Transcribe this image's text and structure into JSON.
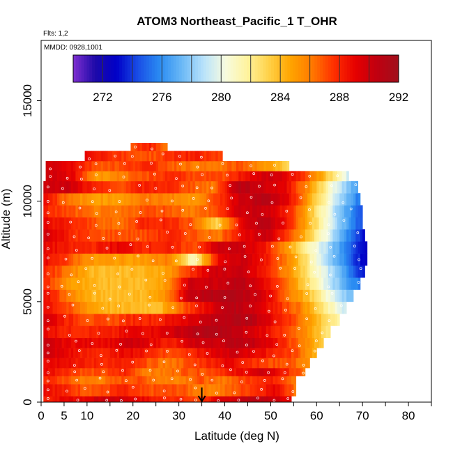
{
  "title": "ATOM3 Northeast_Pacific_1 T_OHR",
  "flights_label": "Flts: 1,2",
  "mmdd_label": "MMDD: 0928,1001",
  "chart_data": {
    "type": "heatmap",
    "title": "ATOM3 Northeast_Pacific_1 T_OHR",
    "xlabel": "Latitude (deg N)",
    "ylabel": "Altitude (m)",
    "xlim": [
      0,
      85
    ],
    "ylim": [
      0,
      18000
    ],
    "x_ticks": [
      0,
      5,
      10,
      20,
      30,
      40,
      50,
      60,
      70,
      80
    ],
    "y_ticks": [
      0,
      5000,
      10000,
      15000
    ],
    "colorbar": {
      "ticks": [
        272,
        276,
        280,
        284,
        288,
        292
      ],
      "range": [
        270,
        292
      ],
      "colors": [
        "#7f2fd0",
        "#1e0aa8",
        "#0000c8",
        "#1a4fe6",
        "#2a8cf2",
        "#6ab8f6",
        "#b8e2fb",
        "#f6fbe0",
        "#fff4a0",
        "#ffd24a",
        "#ffa500",
        "#ff7a00",
        "#ff3000",
        "#e60000",
        "#c00010",
        "#a0101c"
      ]
    },
    "marker_latitude": 35,
    "data_rows": [
      {
        "y0": 0,
        "y1": 300,
        "x0": 0.5,
        "x1": 54.5,
        "v": [
          288,
          289,
          289,
          290,
          290,
          289,
          288,
          288,
          287,
          289,
          290,
          291,
          290,
          289
        ]
      },
      {
        "y0": 300,
        "y1": 900,
        "x0": 0.5,
        "x1": 55.5,
        "v": [
          289,
          288,
          287,
          287,
          288,
          287,
          287,
          287,
          286,
          286,
          287,
          288,
          289,
          286
        ]
      },
      {
        "y0": 900,
        "y1": 1300,
        "x0": 0.5,
        "x1": 55.5,
        "v": [
          288,
          287,
          286,
          286,
          287,
          287,
          286,
          286,
          287,
          286,
          287,
          288,
          288,
          286
        ]
      },
      {
        "y0": 1300,
        "y1": 1700,
        "x0": 0.5,
        "x1": 57.5,
        "v": [
          289,
          288,
          287,
          287,
          288,
          286,
          286,
          287,
          287,
          288,
          289,
          290,
          288,
          286
        ]
      },
      {
        "y0": 1700,
        "y1": 2200,
        "x0": 0.5,
        "x1": 58.5,
        "v": [
          289,
          289,
          288,
          288,
          288,
          287,
          286,
          287,
          288,
          289,
          288,
          287,
          287,
          285
        ]
      },
      {
        "y0": 2200,
        "y1": 2700,
        "x0": 0.5,
        "x1": 60.0,
        "v": [
          290,
          289,
          288,
          288,
          289,
          288,
          287,
          288,
          289,
          290,
          289,
          288,
          287,
          284
        ]
      },
      {
        "y0": 2700,
        "y1": 3200,
        "x0": 0.5,
        "x1": 61.5,
        "v": [
          290,
          289,
          289,
          289,
          290,
          289,
          288,
          290,
          290,
          291,
          290,
          288,
          286,
          283
        ]
      },
      {
        "y0": 3200,
        "y1": 3800,
        "x0": 0.5,
        "x1": 63.0,
        "v": [
          289,
          288,
          288,
          288,
          289,
          289,
          290,
          291,
          291,
          290,
          289,
          287,
          285,
          282
        ]
      },
      {
        "y0": 3800,
        "y1": 4400,
        "x0": 0.5,
        "x1": 65.0,
        "v": [
          290,
          288,
          287,
          287,
          288,
          288,
          289,
          290,
          291,
          291,
          289,
          287,
          284,
          281
        ]
      },
      {
        "y0": 4400,
        "y1": 5000,
        "x0": 0.5,
        "x1": 66.5,
        "v": [
          289,
          287,
          285,
          284,
          284,
          284,
          287,
          289,
          291,
          290,
          288,
          286,
          282,
          279
        ]
      },
      {
        "y0": 5000,
        "y1": 5600,
        "x0": 0.5,
        "x1": 68.0,
        "v": [
          289,
          286,
          284,
          284,
          284,
          285,
          290,
          291,
          291,
          290,
          287,
          284,
          280,
          277
        ]
      },
      {
        "y0": 5600,
        "y1": 6200,
        "x0": 0.5,
        "x1": 69.5,
        "v": [
          288,
          285,
          284,
          284,
          284,
          285,
          290,
          290,
          291,
          289,
          286,
          282,
          278,
          275
        ]
      },
      {
        "y0": 6200,
        "y1": 6800,
        "x0": 0.5,
        "x1": 70.5,
        "v": [
          288,
          286,
          284,
          284,
          284,
          285,
          288,
          290,
          290,
          288,
          285,
          281,
          277,
          273
        ]
      },
      {
        "y0": 6800,
        "y1": 7400,
        "x0": 0.5,
        "x1": 71.0,
        "v": [
          289,
          287,
          285,
          285,
          285,
          286,
          281,
          289,
          290,
          288,
          285,
          280,
          276,
          272
        ]
      },
      {
        "y0": 7400,
        "y1": 8000,
        "x0": 0.5,
        "x1": 71.0,
        "v": [
          289,
          288,
          288,
          289,
          288,
          288,
          287,
          290,
          290,
          288,
          284,
          280,
          276,
          272
        ]
      },
      {
        "y0": 8000,
        "y1": 8600,
        "x0": 0.5,
        "x1": 70.5,
        "v": [
          290,
          288,
          287,
          287,
          287,
          288,
          287,
          286,
          289,
          290,
          287,
          282,
          277,
          273
        ]
      },
      {
        "y0": 8600,
        "y1": 9200,
        "x0": 0.5,
        "x1": 70.0,
        "v": [
          289,
          288,
          287,
          286,
          288,
          288,
          287,
          283,
          289,
          291,
          288,
          283,
          278,
          274
        ]
      },
      {
        "y0": 9200,
        "y1": 9800,
        "x0": 0.5,
        "x1": 70.0,
        "v": [
          288,
          287,
          286,
          286,
          287,
          287,
          286,
          287,
          290,
          290,
          288,
          283,
          278,
          274
        ]
      },
      {
        "y0": 9800,
        "y1": 10400,
        "x0": 0.5,
        "x1": 69.5,
        "v": [
          289,
          286,
          285,
          285,
          286,
          286,
          285,
          287,
          290,
          291,
          289,
          284,
          279,
          275
        ]
      },
      {
        "y0": 10400,
        "y1": 11000,
        "x0": 0.5,
        "x1": 69.0,
        "v": [
          290,
          290,
          288,
          287,
          288,
          288,
          287,
          286,
          291,
          290,
          289,
          285,
          280,
          276
        ]
      },
      {
        "y0": 11000,
        "y1": 11500,
        "x0": 1.0,
        "x1": 67.0,
        "v": [
          290,
          289,
          285,
          286,
          287,
          288,
          287,
          287,
          289,
          290,
          288,
          284,
          279
        ]
      },
      {
        "y0": 11500,
        "y1": 12000,
        "x0": 1.0,
        "x1": 54.0,
        "v": [
          290,
          289,
          287,
          287,
          288,
          287,
          286,
          286,
          287,
          285,
          283
        ]
      },
      {
        "y0": 12000,
        "y1": 12500,
        "x0": 9.5,
        "x1": 39.5,
        "v": [
          289,
          288,
          287,
          287,
          288,
          288,
          287
        ]
      },
      {
        "y0": 12500,
        "y1": 12900,
        "x0": 19.5,
        "x1": 27.5,
        "v": [
          287,
          288,
          286
        ]
      }
    ]
  }
}
